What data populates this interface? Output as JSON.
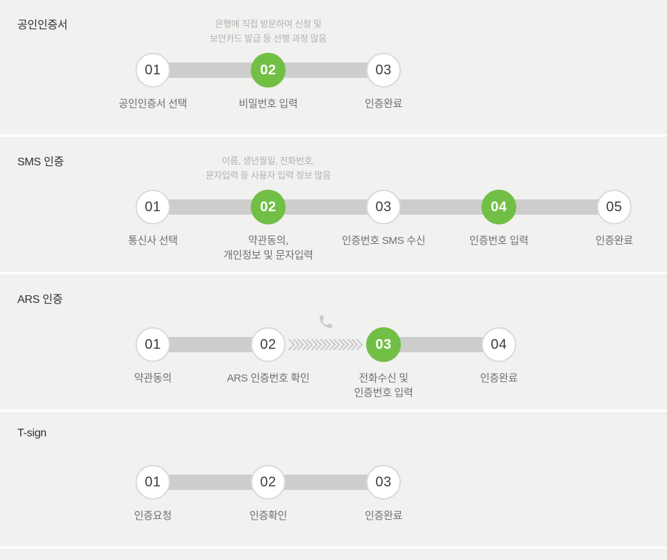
{
  "page": {
    "background_color": "#f1f1f0",
    "divider_color": "#fdfdfd"
  },
  "colors": {
    "active_step_green": "#72bf45",
    "connector_bar_gray": "#cdcdcc",
    "circle_border_gray": "#d9d9d9",
    "note_text_gray": "#b3b1ae",
    "label_text_gray": "#6f6f6f",
    "title_text_dark": "#2f2f2f"
  },
  "sections": [
    {
      "title": "공인인증서",
      "note": "은행에 직접 방문하여 신청 및\n보안카드 발급 등 선행 과정 많음",
      "steps": [
        {
          "num": "01",
          "label": "공인인증서 선택",
          "active": false
        },
        {
          "num": "02",
          "label": "비밀번호 입력",
          "active": true
        },
        {
          "num": "03",
          "label": "인증완료",
          "active": false
        }
      ]
    },
    {
      "title": "SMS 인증",
      "note": "이름, 생년월일, 전화번호,\n문자입력 등 사용자 입력 정보 많음",
      "steps": [
        {
          "num": "01",
          "label": "통신사 선택",
          "active": false
        },
        {
          "num": "02",
          "label": "약관동의,\n개인정보 및 문자입력",
          "active": true
        },
        {
          "num": "03",
          "label": "인증번호 SMS 수신",
          "active": false
        },
        {
          "num": "04",
          "label": "인증번호 입력",
          "active": true
        },
        {
          "num": "05",
          "label": "인증완료",
          "active": false
        }
      ]
    },
    {
      "title": "ARS 인증",
      "note": "",
      "phone_icon": true,
      "chevron_connector_after": "02",
      "steps": [
        {
          "num": "01",
          "label": "약관동의",
          "active": false
        },
        {
          "num": "02",
          "label": "ARS 인증번호 확인",
          "active": false
        },
        {
          "num": "03",
          "label": "전화수신 및\n인증번호 입력",
          "active": true
        },
        {
          "num": "04",
          "label": "인증완료",
          "active": false
        }
      ]
    },
    {
      "title": "T-sign",
      "note": "",
      "steps": [
        {
          "num": "01",
          "label": "인증요청",
          "active": false
        },
        {
          "num": "02",
          "label": "인증확인",
          "active": false
        },
        {
          "num": "03",
          "label": "인증완료",
          "active": false
        }
      ]
    }
  ]
}
